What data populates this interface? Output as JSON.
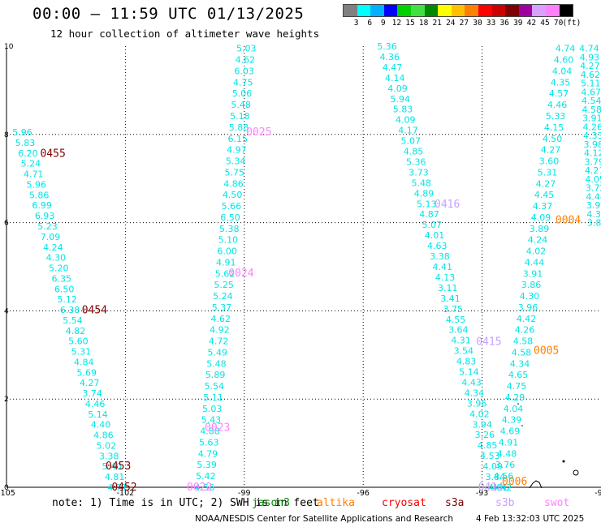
{
  "header": {
    "title": "00:00 – 11:59 UTC 01/13/2025",
    "subtitle": "12 hour collection of altimeter wave heights"
  },
  "legend": {
    "labels": [
      "3",
      "6",
      "9",
      "12",
      "15",
      "18",
      "21",
      "24",
      "27",
      "30",
      "33",
      "36",
      "39",
      "42",
      "45",
      "70",
      "(ft)"
    ],
    "colors": [
      "#808080",
      "#00ffff",
      "#00b0ff",
      "#0000ff",
      "#00d000",
      "#40e040",
      "#008800",
      "#ffff00",
      "#ffc000",
      "#ff8000",
      "#ff0000",
      "#cc0000",
      "#800000",
      "#a000a0",
      "#d8a0ff",
      "#ff80ff",
      "#000000"
    ]
  },
  "notes": {
    "note_text": "note:  1) Time is in UTC; 2) SWH is in feet",
    "satellites": [
      {
        "name": "jason3",
        "color": "#008800"
      },
      {
        "name": "altika",
        "color": "#ff8000"
      },
      {
        "name": "cryosat",
        "color": "#ff0000"
      },
      {
        "name": "s3a",
        "color": "#800000"
      },
      {
        "name": "s3b",
        "color": "#c8a0ff"
      },
      {
        "name": "swot",
        "color": "#ff80ff"
      }
    ],
    "credit": "NOAA/NESDIS Center for Satellite Applications and Research",
    "timestamp": "4 Feb 13:32:03 UTC 2025"
  },
  "chart_data": {
    "type": "scatter",
    "title": "12 hour collection of altimeter wave heights",
    "xlim": [
      -105,
      -90
    ],
    "ylim": [
      0,
      10
    ],
    "x_ticks": [
      "-105",
      "-102",
      "-99",
      "-96",
      "-93",
      "-90"
    ],
    "y_ticks": [
      "0",
      "2",
      "4",
      "6",
      "8",
      "10"
    ],
    "grid": true,
    "value_color": "#00e5e5",
    "tracks": [
      {
        "name": "0455-0452 track",
        "x_top": -104.6,
        "x_bottom": -102.2,
        "y_top": 8.05,
        "y_bottom": 0.0,
        "values": [
          "5.96",
          "5.83",
          "6.20",
          "5.24",
          "4.71",
          "5.96",
          "5.86",
          "6.99",
          "6.93",
          "5.23",
          "7.09",
          "4.24",
          "4.30",
          "5.20",
          "6.35",
          "6.50",
          "5.12",
          "6.38",
          "5.54",
          "4.82",
          "5.60",
          "5.31",
          "4.84",
          "5.69",
          "4.27",
          "3.74",
          "4.46",
          "5.14",
          "4.40",
          "4.86",
          "5.02",
          "3.38",
          "5.40",
          "4.81",
          "4.71"
        ]
      },
      {
        "name": "0025-0022 track",
        "x_top": -98.95,
        "x_bottom": -100.0,
        "y_top": 9.95,
        "y_bottom": 0.0,
        "values": [
          "5.03",
          "4.62",
          "6.03",
          "4.75",
          "5.06",
          "5.48",
          "5.18",
          "5.88",
          "6.15",
          "4.97",
          "5.34",
          "5.75",
          "4.86",
          "4.50",
          "5.66",
          "6.50",
          "5.38",
          "5.10",
          "6.00",
          "4.91",
          "5.62",
          "5.25",
          "5.24",
          "5.37",
          "4.62",
          "4.92",
          "4.72",
          "5.49",
          "5.48",
          "5.89",
          "5.54",
          "5.11",
          "5.03",
          "5.43",
          "4.88",
          "5.63",
          "4.79",
          "5.39",
          "5.42",
          "4.56"
        ]
      },
      {
        "name": "0416-0415 track",
        "x_top": -95.4,
        "x_bottom": -92.6,
        "y_top": 10.0,
        "y_bottom": 0.0,
        "values": [
          "5.36",
          "4.36",
          "4.47",
          "4.14",
          "4.09",
          "5.94",
          "5.83",
          "4.09",
          "4.17",
          "5.07",
          "4.85",
          "5.36",
          "3.73",
          "5.48",
          "4.89",
          "5.13",
          "4.87",
          "5.07",
          "4.01",
          "4.63",
          "3.38",
          "4.41",
          "4.13",
          "3.11",
          "3.41",
          "3.75",
          "4.55",
          "3.64",
          "4.31",
          "3.54",
          "4.83",
          "5.14",
          "4.43",
          "4.34",
          "3.96",
          "4.02",
          "3.94",
          "3.26",
          "4.85",
          "4.53",
          "4.09",
          "3.84",
          "4.81"
        ]
      },
      {
        "name": "0004-0005 track",
        "x_top": -90.9,
        "x_bottom": -92.5,
        "y_top": 9.95,
        "y_bottom": 0.0,
        "values": [
          "4.74",
          "4.60",
          "4.04",
          "4.35",
          "4.57",
          "4.46",
          "5.33",
          "4.15",
          "4.50",
          "4.27",
          "3.60",
          "5.31",
          "4.27",
          "4.45",
          "4.37",
          "4.09",
          "3.89",
          "4.24",
          "4.02",
          "4.44",
          "3.91",
          "3.86",
          "4.30",
          "3.96",
          "4.42",
          "4.26",
          "4.58",
          "4.58",
          "4.34",
          "4.65",
          "4.75",
          "4.29",
          "4.04",
          "4.39",
          "4.69",
          "4.91",
          "4.48",
          "3.76",
          "4.56",
          "4.42"
        ]
      },
      {
        "name": "east track",
        "x_top": -90.3,
        "x_bottom": -90.1,
        "y_top": 9.95,
        "y_bottom": 6.0,
        "values": [
          "4.74",
          "4.93",
          "4.27",
          "4.62",
          "5.11",
          "4.67",
          "4.54",
          "4.58",
          "3.91",
          "4.26",
          "4.33",
          "3.98",
          "4.12",
          "3.79",
          "4.21",
          "4.05",
          "3.72",
          "4.44",
          "3.96",
          "4.30",
          "3.88"
        ]
      }
    ],
    "pass_labels": [
      {
        "text": "0455",
        "color": "#800000",
        "x": -104.15,
        "y": 7.56
      },
      {
        "text": "0454",
        "color": "#800000",
        "x": -103.1,
        "y": 4.02
      },
      {
        "text": "0453",
        "color": "#800000",
        "x": -102.5,
        "y": 0.48
      },
      {
        "text": "0452",
        "color": "#800000",
        "x": -102.35,
        "y": 0.0
      },
      {
        "text": "0025",
        "color": "#ff80ff",
        "x": -98.95,
        "y": 8.05
      },
      {
        "text": "0024",
        "color": "#ff80ff",
        "x": -99.4,
        "y": 4.85
      },
      {
        "text": "0023",
        "color": "#ff80ff",
        "x": -100.0,
        "y": 1.35
      },
      {
        "text": "0022",
        "color": "#ff80ff",
        "x": -100.45,
        "y": 0.0
      },
      {
        "text": "0416",
        "color": "#c8a0ff",
        "x": -94.2,
        "y": 6.42
      },
      {
        "text": "0415",
        "color": "#c8a0ff",
        "x": -93.15,
        "y": 3.3
      },
      {
        "text": "0414",
        "color": "#c8a0ff",
        "x": -93.1,
        "y": 0.0
      },
      {
        "text": "0004",
        "color": "#ff8000",
        "x": -91.15,
        "y": 6.06
      },
      {
        "text": "0005",
        "color": "#ff8000",
        "x": -91.7,
        "y": 3.1
      },
      {
        "text": "0006",
        "color": "#ff8000",
        "x": -92.5,
        "y": 0.13
      }
    ]
  }
}
